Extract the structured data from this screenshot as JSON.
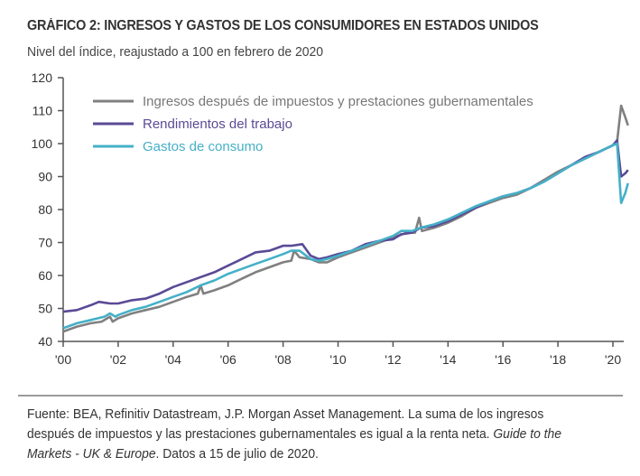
{
  "chart_data": {
    "type": "line",
    "title": "GRÁFICO 2: INGRESOS Y GASTOS DE LOS CONSUMIDORES EN ESTADOS UNIDOS",
    "subtitle": "Nivel del índice, reajustado a 100 en febrero de 2020",
    "xlabel": "",
    "ylabel": "",
    "xlim": [
      2000,
      2020.6
    ],
    "ylim": [
      40,
      120
    ],
    "yticks": [
      40,
      50,
      60,
      70,
      80,
      90,
      100,
      110,
      120
    ],
    "xticks": [
      2000,
      2002,
      2004,
      2006,
      2008,
      2010,
      2012,
      2014,
      2016,
      2018,
      2020
    ],
    "xtick_labels": [
      "'00",
      "'02",
      "'04",
      "'06",
      "'08",
      "'10",
      "'12",
      "'14",
      "'16",
      "'18",
      "'20"
    ],
    "grid": false,
    "legend_position": "top-left",
    "series": [
      {
        "name": "Ingresos después de impuestos y prestaciones gubernamentales",
        "color": "#808080",
        "x": [
          2000,
          2000.5,
          2001,
          2001.4,
          2001.7,
          2001.8,
          2002,
          2002.5,
          2003,
          2003.5,
          2004,
          2004.5,
          2004.9,
          2005,
          2005.1,
          2005.5,
          2006,
          2006.5,
          2007,
          2007.5,
          2008,
          2008.3,
          2008.4,
          2008.6,
          2009,
          2009.3,
          2009.6,
          2010,
          2010.5,
          2011,
          2011.5,
          2012,
          2012.5,
          2012.8,
          2012.95,
          2013.05,
          2013.5,
          2014,
          2014.5,
          2015,
          2015.5,
          2016,
          2016.5,
          2017,
          2017.5,
          2018,
          2018.5,
          2019,
          2019.5,
          2020,
          2020.15,
          2020.3,
          2020.45,
          2020.55
        ],
        "values": [
          43,
          44.5,
          45.5,
          46,
          47.5,
          46,
          47,
          48.5,
          49.5,
          50.5,
          52,
          53.5,
          54.5,
          57,
          54.5,
          55.5,
          57,
          59,
          61,
          62.5,
          64,
          64.5,
          67.5,
          65.5,
          65,
          64,
          64,
          65.5,
          67,
          68.5,
          70,
          71.5,
          73,
          73,
          77.5,
          73.5,
          74.5,
          76,
          78,
          80.5,
          82,
          83.5,
          84.5,
          86.5,
          89,
          91.5,
          93.5,
          95.5,
          97.5,
          99.5,
          100.5,
          111.5,
          108,
          105.5
        ]
      },
      {
        "name": "Rendimientos del trabajo",
        "color": "#5a4a96",
        "x": [
          2000,
          2000.5,
          2001,
          2001.3,
          2001.7,
          2002,
          2002.5,
          2003,
          2003.5,
          2004,
          2004.5,
          2005,
          2005.5,
          2006,
          2006.5,
          2007,
          2007.5,
          2008,
          2008.3,
          2008.7,
          2009,
          2009.3,
          2009.6,
          2010,
          2010.5,
          2011,
          2011.5,
          2012,
          2012.3,
          2012.7,
          2013,
          2013.5,
          2014,
          2014.5,
          2015,
          2015.5,
          2016,
          2016.5,
          2017,
          2017.5,
          2018,
          2018.5,
          2019,
          2019.5,
          2020,
          2020.15,
          2020.3,
          2020.45,
          2020.55
        ],
        "values": [
          49,
          49.5,
          51,
          52,
          51.5,
          51.5,
          52.5,
          53,
          54.5,
          56.5,
          58,
          59.5,
          61,
          63,
          65,
          67,
          67.5,
          69,
          69,
          69.5,
          66,
          65,
          65.5,
          66.5,
          67.5,
          69.5,
          70.5,
          71,
          72.5,
          73,
          74.5,
          75,
          76.5,
          78.5,
          80.5,
          82.5,
          84,
          85,
          86.5,
          88.5,
          91,
          93.5,
          96,
          97.5,
          99.5,
          101,
          90,
          91,
          92
        ]
      },
      {
        "name": "Gastos de consumo",
        "color": "#45b0c8",
        "x": [
          2000,
          2000.5,
          2001,
          2001.5,
          2001.7,
          2001.9,
          2002,
          2002.5,
          2003,
          2003.5,
          2004,
          2004.5,
          2005,
          2005.5,
          2006,
          2006.5,
          2007,
          2007.5,
          2008,
          2008.3,
          2008.6,
          2009,
          2009.3,
          2009.6,
          2010,
          2010.5,
          2011,
          2011.5,
          2012,
          2012.3,
          2012.7,
          2013,
          2013.5,
          2014,
          2014.5,
          2015,
          2015.5,
          2016,
          2016.5,
          2017,
          2017.5,
          2018,
          2018.5,
          2019,
          2019.5,
          2020,
          2020.15,
          2020.3,
          2020.45,
          2020.55
        ],
        "values": [
          44,
          45.5,
          46.5,
          47.5,
          48.5,
          47.5,
          48,
          49.5,
          50.5,
          52,
          53.5,
          55,
          57,
          58.5,
          60.5,
          62,
          63.5,
          65,
          66.5,
          67.5,
          67.5,
          65,
          64.5,
          65,
          66,
          67.5,
          69,
          70.5,
          72,
          73.5,
          73.5,
          74.5,
          75.5,
          77,
          79,
          81,
          82.5,
          84,
          85,
          86.5,
          88.5,
          91,
          93.5,
          95.5,
          97.5,
          99.5,
          100,
          82,
          85,
          88
        ]
      }
    ]
  },
  "footnote": {
    "part1": "Fuente: BEA, Refinitiv Datastream, J.P. Morgan Asset Management. La suma de los ingresos después de impuestos y las prestaciones gubernamentales es igual a la renta neta. ",
    "italic": "Guide to the Markets - UK & Europe",
    "part2": ". Datos a 15 de julio de 2020."
  }
}
